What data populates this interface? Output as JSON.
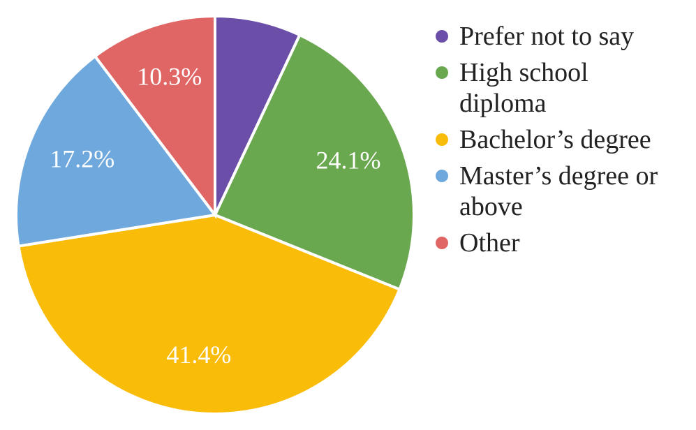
{
  "chart_data": {
    "type": "pie",
    "categories": [
      "Prefer not to say",
      "High school diploma",
      "Bachelor’s degree",
      "Master’s degree or above",
      "Other"
    ],
    "values": [
      7.0,
      24.1,
      41.4,
      17.2,
      10.3
    ],
    "value_labels": [
      null,
      "24.1%",
      "41.4%",
      "17.2%",
      "10.3%"
    ],
    "colors": [
      "#6a4ea8",
      "#6aa84f",
      "#f9bc08",
      "#6fa8dc",
      "#e06666"
    ],
    "legend": "right"
  }
}
